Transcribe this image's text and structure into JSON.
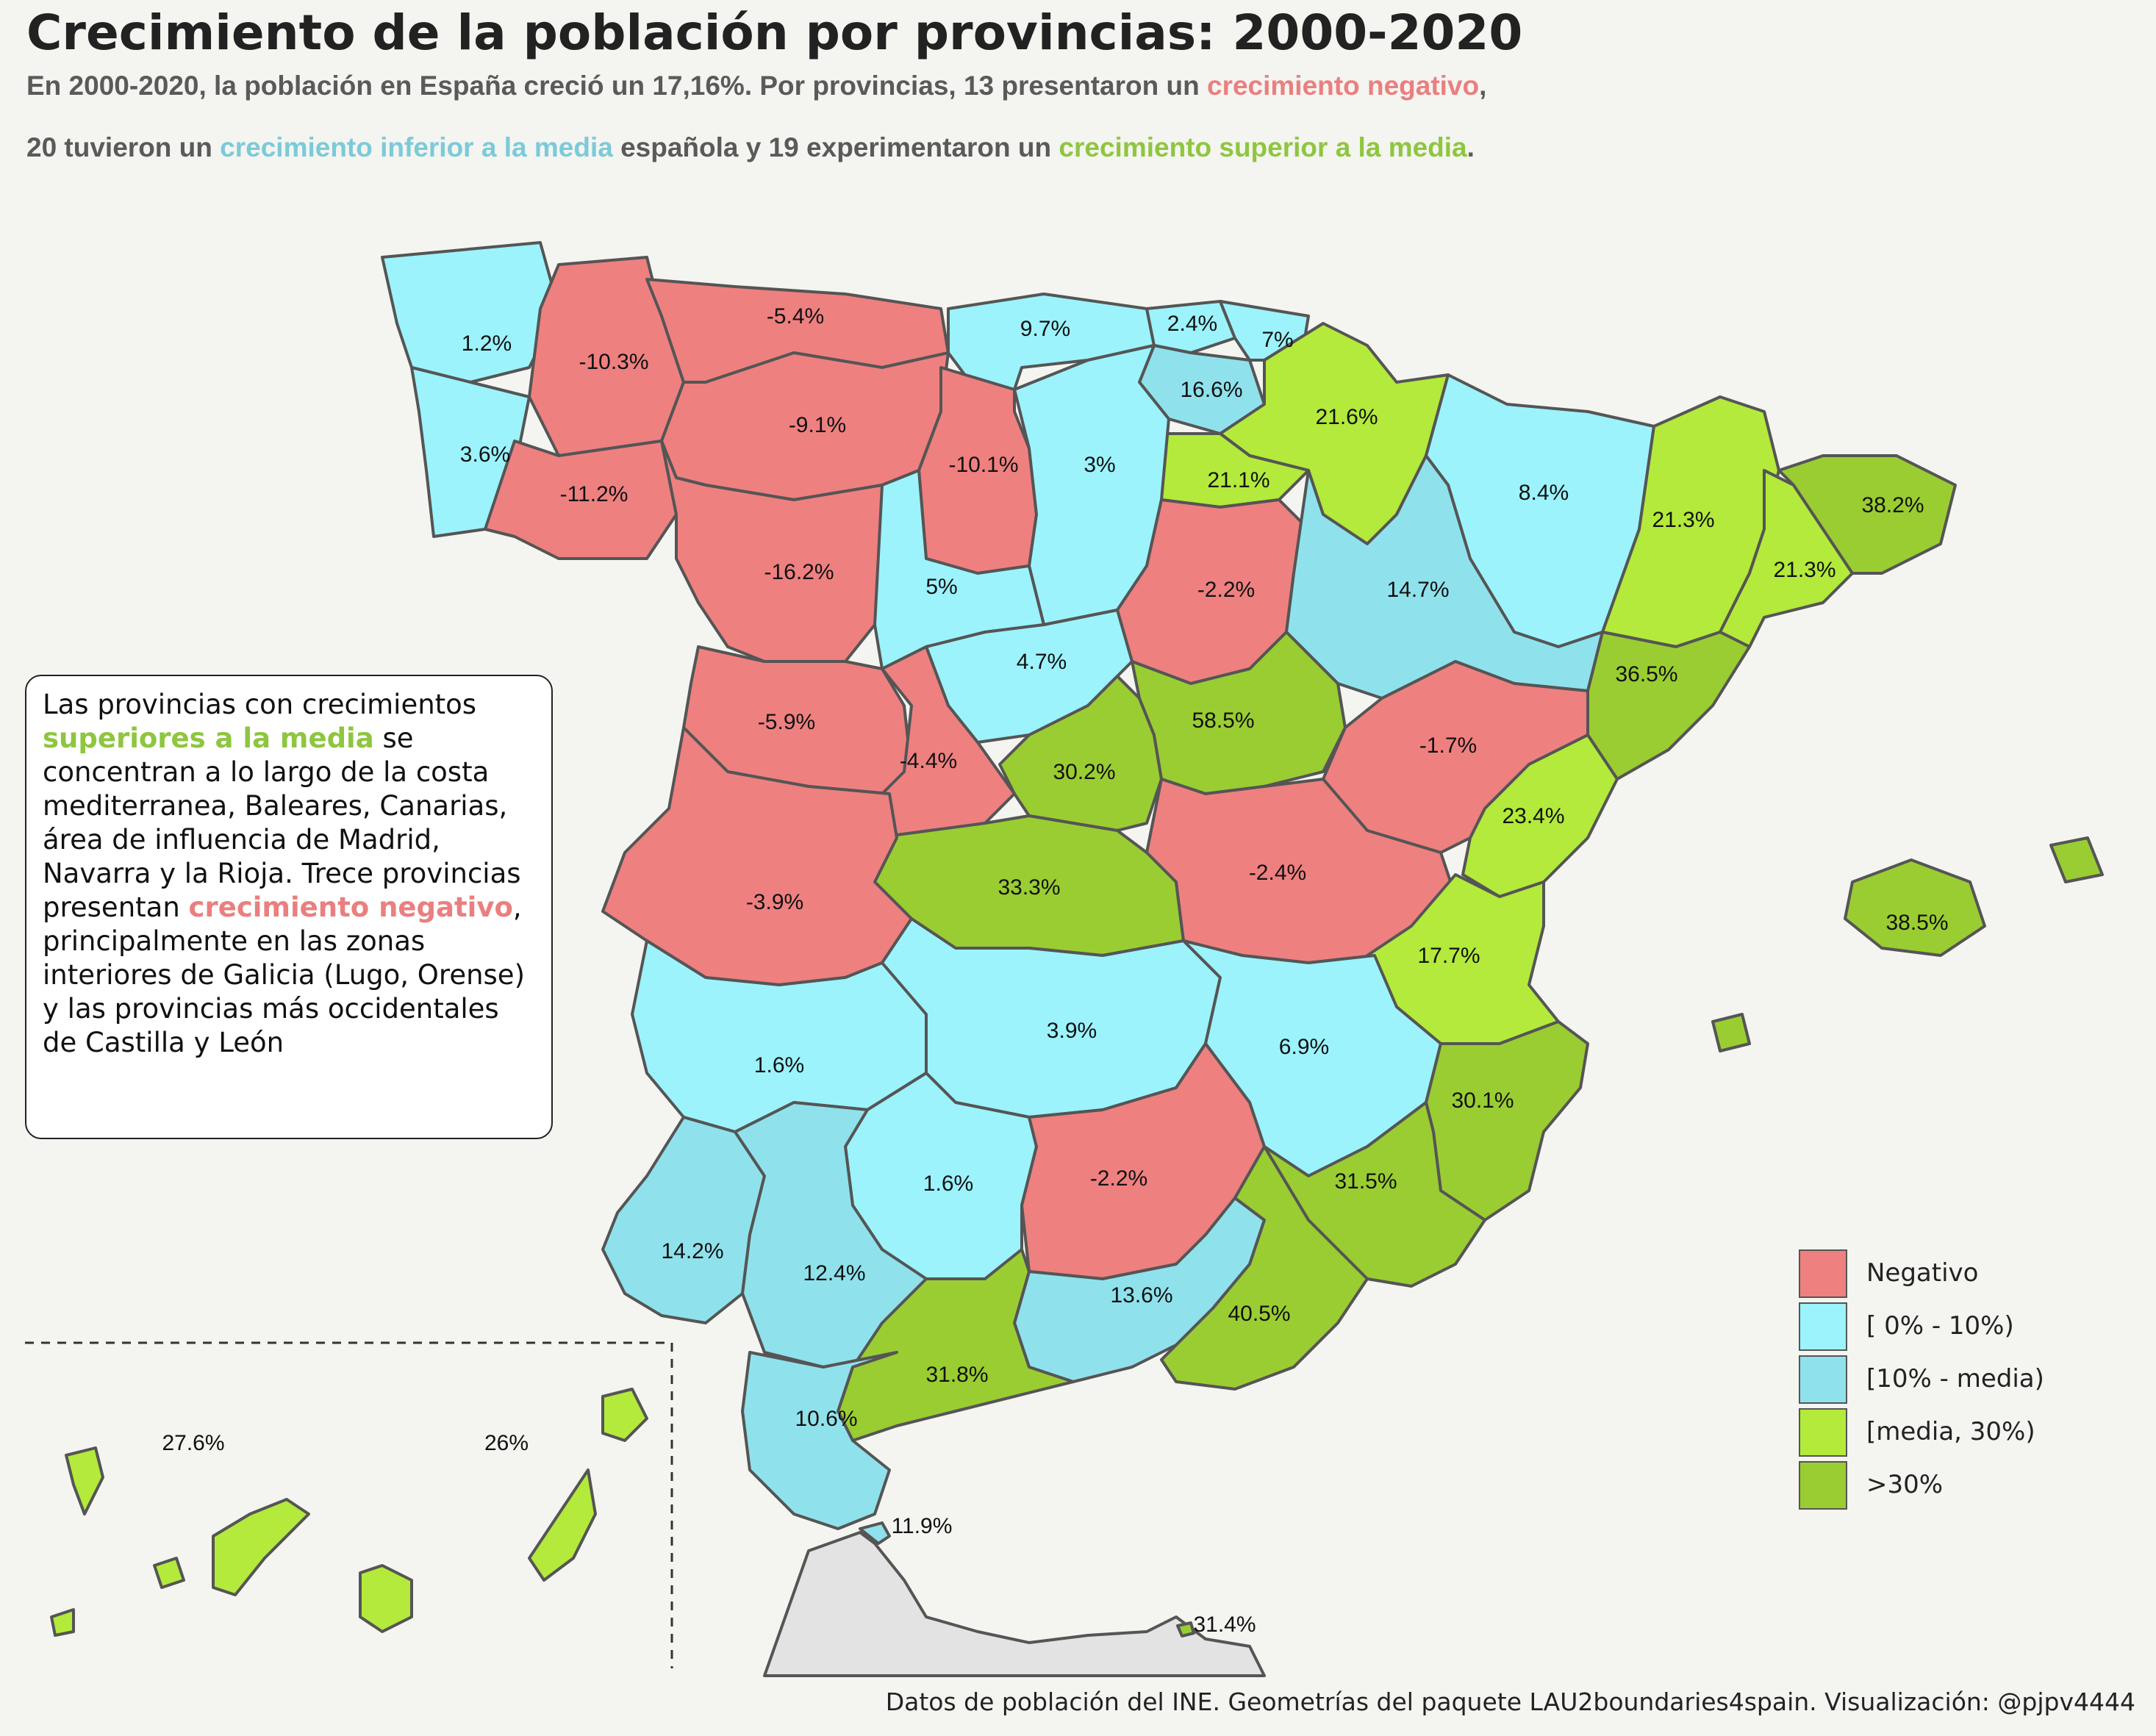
{
  "title": "Crecimiento de la población por provincias: 2000-2020",
  "subtitle": {
    "l1a": "En 2000-2020, la población en España creció un 17,16%. Por provincias, 13 presentaron un ",
    "l1b": "crecimiento negativo",
    "l1c": ",",
    "l2a": "20 tuvieron un ",
    "l2b": "crecimiento inferior a la media",
    "l2c": " española y 19 experimentaron un ",
    "l2d": "crecimiento superior a la media",
    "l2e": "."
  },
  "note": {
    "t1": "Las provincias con crecimientos ",
    "h1": "superiores a la media",
    "t2": " se concentran a lo largo de la costa mediterranea, Baleares, Canarias, área de influencia de Madrid, Navarra y la Rioja. Trece provincias presentan ",
    "h2": "crecimiento negativo",
    "t3": ", principalmente en las zonas interiores de Galicia (Lugo, Orense) y las provincias más occidentales de Castilla y León"
  },
  "legend": [
    {
      "label": "Negativo",
      "color": "#ef8080"
    },
    {
      "label": "[ 0% - 10%)",
      "color": "#9cf3fc"
    },
    {
      "label": "[10% - media)",
      "color": "#8fe2ec"
    },
    {
      "label": "[media, 30%)",
      "color": "#b3ea3b"
    },
    {
      "label": " >30%",
      "color": "#9acd32"
    }
  ],
  "colors": {
    "neg": "#ef8080",
    "low": "#9cf3fc",
    "mid": "#8fe2ec",
    "high": "#b3ea3b",
    "top": "#9acd32",
    "africa": "#e3e3e3",
    "border": "#555555"
  },
  "provinces": [
    {
      "name": "A Coruña",
      "value": "1.2%",
      "class": "low"
    },
    {
      "name": "Pontevedra",
      "value": "3.6%",
      "class": "low"
    },
    {
      "name": "Lugo",
      "value": "-10.3%",
      "class": "neg"
    },
    {
      "name": "Ourense",
      "value": "-11.2%",
      "class": "neg"
    },
    {
      "name": "Asturias",
      "value": "-5.4%",
      "class": "neg"
    },
    {
      "name": "León",
      "value": "-9.1%",
      "class": "neg"
    },
    {
      "name": "Cantabria",
      "value": "9.7%",
      "class": "low"
    },
    {
      "name": "Bizkaia",
      "value": "2.4%",
      "class": "low"
    },
    {
      "name": "Gipuzkoa",
      "value": "7%",
      "class": "low"
    },
    {
      "name": "Araba/Álava",
      "value": "16.6%",
      "class": "mid"
    },
    {
      "name": "Navarra",
      "value": "21.6%",
      "class": "high"
    },
    {
      "name": "La Rioja",
      "value": "21.1%",
      "class": "high"
    },
    {
      "name": "Palencia",
      "value": "-10.1%",
      "class": "neg"
    },
    {
      "name": "Burgos",
      "value": "3%",
      "class": "low"
    },
    {
      "name": "Huesca",
      "value": "8.4%",
      "class": "low"
    },
    {
      "name": "Lleida",
      "value": "21.3%",
      "class": "high"
    },
    {
      "name": "Barcelona",
      "value": "21.3%",
      "class": "high"
    },
    {
      "name": "Girona",
      "value": "38.2%",
      "class": "top"
    },
    {
      "name": "Zamora",
      "value": "-16.2%",
      "class": "neg"
    },
    {
      "name": "Valladolid",
      "value": "5%",
      "class": "low"
    },
    {
      "name": "Soria",
      "value": "-2.2%",
      "class": "neg"
    },
    {
      "name": "Zaragoza",
      "value": "14.7%",
      "class": "mid"
    },
    {
      "name": "Tarragona",
      "value": "36.5%",
      "class": "top"
    },
    {
      "name": "Segovia",
      "value": "4.7%",
      "class": "low"
    },
    {
      "name": "Salamanca",
      "value": "-5.9%",
      "class": "neg"
    },
    {
      "name": "Ávila",
      "value": "-4.4%",
      "class": "neg"
    },
    {
      "name": "Madrid",
      "value": "30.2%",
      "class": "top"
    },
    {
      "name": "Guadalajara",
      "value": "58.5%",
      "class": "top"
    },
    {
      "name": "Teruel",
      "value": "-1.7%",
      "class": "neg"
    },
    {
      "name": "Castellón",
      "value": "23.4%",
      "class": "high"
    },
    {
      "name": "Toledo",
      "value": "33.3%",
      "class": "top"
    },
    {
      "name": "Cuenca",
      "value": "-2.4%",
      "class": "neg"
    },
    {
      "name": "Cáceres",
      "value": "-3.9%",
      "class": "neg"
    },
    {
      "name": "Valencia",
      "value": "17.7%",
      "class": "high"
    },
    {
      "name": "Illes Balears",
      "value": "38.5%",
      "class": "top"
    },
    {
      "name": "Badajoz",
      "value": "1.6%",
      "class": "low"
    },
    {
      "name": "Ciudad Real",
      "value": "3.9%",
      "class": "low"
    },
    {
      "name": "Albacete",
      "value": "6.9%",
      "class": "low"
    },
    {
      "name": "Alicante",
      "value": "30.1%",
      "class": "top"
    },
    {
      "name": "Córdoba",
      "value": "1.6%",
      "class": "low"
    },
    {
      "name": "Jaén",
      "value": "-2.2%",
      "class": "neg"
    },
    {
      "name": "Murcia",
      "value": "31.5%",
      "class": "top"
    },
    {
      "name": "Huelva",
      "value": "14.2%",
      "class": "mid"
    },
    {
      "name": "Sevilla",
      "value": "12.4%",
      "class": "mid"
    },
    {
      "name": "Granada",
      "value": "13.6%",
      "class": "mid"
    },
    {
      "name": "Almería",
      "value": "40.5%",
      "class": "top"
    },
    {
      "name": "Málaga",
      "value": "31.8%",
      "class": "top"
    },
    {
      "name": "Cádiz",
      "value": "10.6%",
      "class": "mid"
    },
    {
      "name": "Santa Cruz de Tenerife",
      "value": "27.6%",
      "class": "high"
    },
    {
      "name": "Las Palmas",
      "value": "26%",
      "class": "high"
    },
    {
      "name": "Ceuta",
      "value": "11.9%",
      "class": "mid"
    },
    {
      "name": "Melilla",
      "value": "31.4%",
      "class": "top"
    }
  ],
  "footer": "Datos de población del INE. Geometrías del paquete LAU2boundaries4spain. Visualización: @pjpv4444"
}
